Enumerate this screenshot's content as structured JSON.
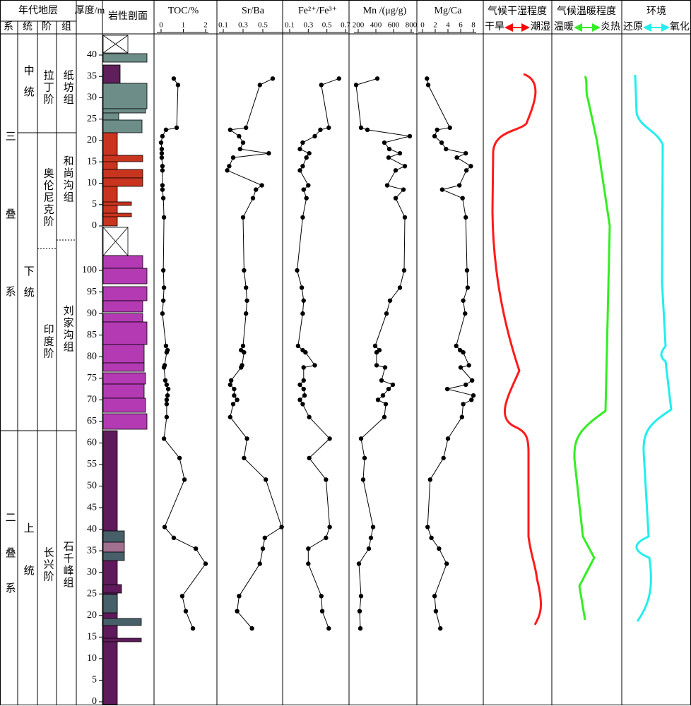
{
  "header": {
    "chronostratigraphy": "年代地层",
    "system": "系",
    "series": "统",
    "stage": "阶",
    "formation": "组",
    "lithology": "岩性剖面"
  },
  "stratigraphy": {
    "systems": [
      "三叠系",
      "二叠系"
    ],
    "series": [
      "中统",
      "下统",
      "上统"
    ],
    "stages": [
      "拉丁阶",
      "奥伦尼克阶",
      "印度阶",
      "长兴阶"
    ],
    "formations": [
      "纸坊组",
      "和尚沟组",
      "刘家沟组",
      "石千峰组"
    ]
  },
  "depth_axis": {
    "title": "厚度/m",
    "sections": [
      {
        "ylim": [
          0,
          40
        ],
        "yticks": [
          0,
          5,
          10,
          15,
          20,
          25,
          30,
          35,
          40
        ]
      },
      {
        "ylim": [
          0,
          100
        ],
        "yticks": [
          0,
          5,
          10,
          15,
          20,
          25,
          30,
          35,
          40,
          45,
          50,
          55,
          60,
          65,
          70,
          75,
          80,
          85,
          90,
          95,
          100
        ]
      }
    ]
  },
  "chart_data": [
    {
      "type": "line",
      "title": "TOC/%",
      "xlim": [
        0,
        2
      ],
      "xticks": [
        0,
        1,
        2
      ],
      "color": "#000000",
      "sections": [
        {
          "depth": [
            34.5,
            33,
            23,
            22.5,
            21,
            19.5,
            18,
            17,
            16,
            14,
            13,
            9.5,
            8.5,
            6.5,
            2
          ],
          "values": [
            0.57,
            0.76,
            0.7,
            0.22,
            0.06,
            0,
            0.03,
            0.03,
            0.03,
            0.06,
            0.06,
            0.06,
            0.06,
            0.1,
            0.13
          ]
        },
        {
          "depth": [
            100,
            96,
            93,
            90,
            82.5,
            81.5,
            81,
            78,
            77.5,
            74.5,
            73.5,
            72.5,
            71,
            70,
            69,
            66,
            61,
            56.5,
            51.5,
            40.5,
            38,
            35.5,
            32,
            24.5,
            21,
            17
          ],
          "values": [
            0.1,
            0.13,
            0.1,
            0.06,
            0.22,
            0.29,
            0.25,
            0.16,
            0.13,
            0.19,
            0.25,
            0.32,
            0.29,
            0.25,
            0.25,
            0.25,
            0.13,
            0.83,
            1.05,
            0.16,
            0.57,
            1.56,
            2,
            0.95,
            1.11,
            1.43
          ]
        }
      ]
    },
    {
      "type": "line",
      "title": "Sr/Ba",
      "xlim": [
        0.1,
        0.7
      ],
      "xticks": [
        0.1,
        0.3,
        0.5
      ],
      "color": "#000000",
      "sections": [
        {
          "depth": [
            34.5,
            33,
            23,
            22.5,
            21,
            19.5,
            18,
            17,
            16,
            14,
            13,
            9.5,
            8.5,
            6.5,
            2
          ],
          "values": [
            0.6,
            0.47,
            0.33,
            0.17,
            0.26,
            0.3,
            0.27,
            0.56,
            0.2,
            0.16,
            0.14,
            0.49,
            0.43,
            0.4,
            0.3
          ]
        },
        {
          "depth": [
            100,
            96,
            93,
            90,
            82.5,
            81.5,
            81,
            78,
            77.5,
            74.5,
            73.5,
            72.5,
            71,
            70,
            69,
            66,
            61,
            56.5,
            51.5,
            40.5,
            38,
            35.5,
            32,
            24.5,
            21,
            17
          ],
          "values": [
            0.31,
            0.33,
            0.34,
            0.33,
            0.3,
            0.28,
            0.31,
            0.29,
            0.28,
            0.18,
            0.17,
            0.21,
            0.21,
            0.24,
            0.2,
            0.17,
            0.34,
            0.31,
            0.53,
            0.69,
            0.52,
            0.5,
            0.47,
            0.26,
            0.24,
            0.39
          ]
        }
      ]
    },
    {
      "type": "line",
      "title": "Fe²⁺/Fe³⁺",
      "xlim": [
        0.1,
        0.7
      ],
      "xticks": [
        0.1,
        0.3,
        0.5,
        0.7
      ],
      "color": "#000000",
      "sections": [
        {
          "depth": [
            34.5,
            33,
            23,
            22.5,
            21,
            19.5,
            18,
            17,
            16,
            14,
            13,
            9.5,
            8.5,
            6.5,
            2
          ],
          "values": [
            0.63,
            0.44,
            0.52,
            0.43,
            0.37,
            0.24,
            0.21,
            0.31,
            0.28,
            0.24,
            0.21,
            0.3,
            0.25,
            0.28,
            0.24
          ]
        },
        {
          "depth": [
            100,
            96,
            93,
            90,
            82.5,
            81.5,
            81,
            78,
            77.5,
            74.5,
            73.5,
            72.5,
            71,
            70,
            69,
            66,
            61,
            56.5,
            51.5,
            40.5,
            38,
            35.5,
            32,
            24.5,
            21,
            17
          ],
          "values": [
            0.18,
            0.23,
            0.25,
            0.24,
            0.19,
            0.24,
            0.27,
            0.37,
            0.25,
            0.25,
            0.21,
            0.25,
            0.26,
            0.21,
            0.24,
            0.31,
            0.53,
            0.31,
            0.49,
            0.53,
            0.49,
            0.3,
            0.3,
            0.44,
            0.45,
            0.52
          ]
        }
      ]
    },
    {
      "type": "line",
      "title": "Mn /(μg/g)",
      "xlim": [
        200,
        800
      ],
      "xticks": [
        200,
        400,
        600,
        800
      ],
      "color": "#000000",
      "sections": [
        {
          "depth": [
            34.5,
            33,
            23,
            22.5,
            21,
            19.5,
            18,
            17,
            16,
            14,
            13,
            9.5,
            8.5,
            6.5,
            2
          ],
          "values": [
            416,
            176,
            232,
            304,
            784,
            496,
            552,
            672,
            544,
            728,
            624,
            528,
            712,
            624,
            728
          ]
        },
        {
          "depth": [
            100,
            96,
            93,
            90,
            82.5,
            81.5,
            81,
            78,
            77.5,
            74.5,
            73.5,
            72.5,
            71,
            70,
            69,
            66,
            61,
            56.5,
            51.5,
            40.5,
            38,
            35.5,
            32,
            24.5,
            21,
            17
          ],
          "values": [
            720,
            672,
            560,
            520,
            392,
            440,
            408,
            408,
            504,
            464,
            592,
            544,
            480,
            424,
            512,
            496,
            232,
            272,
            256,
            368,
            344,
            320,
            208,
            232,
            216,
            224
          ]
        }
      ]
    },
    {
      "type": "line",
      "title": "Mg/Ca",
      "xlim": [
        0,
        8
      ],
      "xticks": [
        0,
        2,
        4,
        6,
        8
      ],
      "color": "#000000",
      "sections": [
        {
          "depth": [
            34.5,
            33,
            23,
            22.5,
            21,
            19.5,
            18,
            17,
            16,
            14,
            13,
            9.5,
            8.5,
            6.5,
            2
          ],
          "values": [
            0.7,
            0.9,
            4.3,
            2.3,
            1.9,
            3,
            3.7,
            6.8,
            5.4,
            7.6,
            6.9,
            5.8,
            3.1,
            6.3,
            6.8
          ]
        },
        {
          "depth": [
            100,
            96,
            93,
            90,
            82.5,
            81.5,
            81,
            78,
            77.5,
            74.5,
            73.5,
            72.5,
            71,
            70,
            69,
            66,
            61,
            56.5,
            51.5,
            40.5,
            38,
            35.5,
            32,
            24.5,
            21,
            17
          ],
          "values": [
            7,
            7.1,
            6.4,
            6.7,
            5.3,
            5.9,
            6.4,
            7.3,
            6,
            7.8,
            6.8,
            3.9,
            8,
            7.7,
            6.4,
            6.2,
            4,
            3.3,
            1.2,
            0.8,
            1.4,
            2.6,
            3.8,
            1.9,
            2.1,
            2.8
          ]
        }
      ]
    }
  ],
  "climate": {
    "humidity": {
      "title": "气候干湿程度",
      "left": "干旱",
      "right": "潮湿"
    },
    "warmth": {
      "title": "气候温暖程度",
      "left": "温暖",
      "right": "炎热"
    },
    "environment": {
      "title": "环境",
      "left": "还原",
      "right": "氧化"
    }
  }
}
